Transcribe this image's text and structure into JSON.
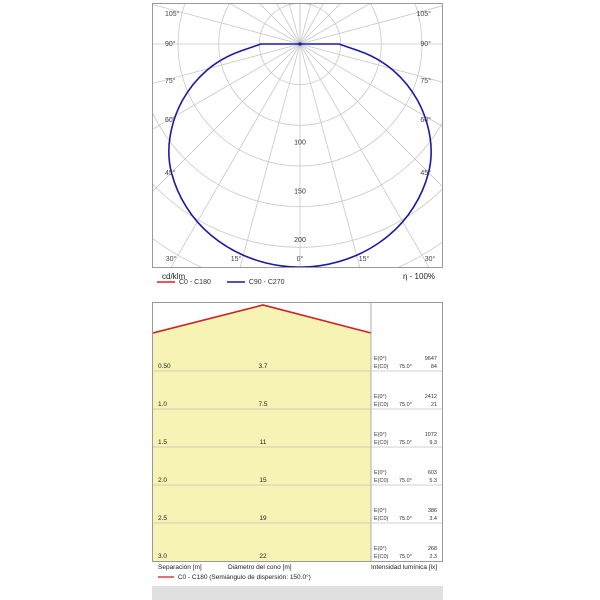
{
  "polar": {
    "unit": "cd/klm",
    "efficiency": "η -  100%",
    "angle_labels": {
      "left_upper": [
        "105°",
        "90°",
        "75°",
        "60°",
        "45°"
      ],
      "right_upper": [
        "105°",
        "90°",
        "75°",
        "60°",
        "45°"
      ],
      "bottom": [
        "30°",
        "15°",
        "0°",
        "15°",
        "30°"
      ]
    },
    "radial_labels": [
      "100",
      "150",
      "200"
    ],
    "legend": [
      {
        "label": "C0 - C180",
        "color": "#e02020"
      },
      {
        "label": "C90 - C270",
        "color": "#1a1aa8"
      }
    ]
  },
  "chart_data": [
    {
      "type": "polar",
      "title": "",
      "unit": "cd/klm",
      "r_max": 250,
      "r_ticks": [
        100,
        150,
        200
      ],
      "angle_ticks_deg": [
        0,
        15,
        30,
        45,
        60,
        75,
        90,
        105
      ],
      "series": [
        {
          "name": "C90 - C270",
          "color": "#1a1aa8",
          "angles_deg": [
            0,
            10,
            20,
            30,
            40,
            50,
            60,
            70,
            80,
            90
          ],
          "values": [
            230,
            228,
            222,
            212,
            197,
            178,
            150,
            118,
            82,
            40
          ]
        }
      ]
    },
    {
      "type": "table",
      "title": "",
      "columns": [
        "Separación [m]",
        "Diámetro del cono [m]",
        "Intensidad lumínica [lx]"
      ],
      "rows": [
        {
          "separacion": "0.50",
          "diametro": "3.7",
          "e0": "9647",
          "ec0": "84",
          "angle": "75.0°"
        },
        {
          "separacion": "1.0",
          "diametro": "7.5",
          "e0": "2412",
          "ec0": "21",
          "angle": "75.0°"
        },
        {
          "separacion": "1.5",
          "diametro": "11",
          "e0": "1072",
          "ec0": "9.3",
          "angle": "75.0°"
        },
        {
          "separacion": "2.0",
          "diametro": "15",
          "e0": "603",
          "ec0": "5.3",
          "angle": "75.0°"
        },
        {
          "separacion": "2.5",
          "diametro": "19",
          "e0": "386",
          "ec0": "3.4",
          "angle": "75.0°"
        },
        {
          "separacion": "3.0",
          "diametro": "22",
          "e0": "268",
          "ec0": "2.3",
          "angle": "75.0°"
        }
      ],
      "e0_label": "E(0°)",
      "ec0_label": "E(C0)"
    }
  ],
  "cone": {
    "footer": {
      "separacion": "Separación [m]",
      "diametro": "Diámetro del cono [m]",
      "intensidad": "Intensidad lumínica [lx]",
      "legend": "C0 - C180 (Semiángulo de dispersión: 150.0°)"
    },
    "fill_color": "#f7f3b4",
    "line_color": "#d02020"
  }
}
